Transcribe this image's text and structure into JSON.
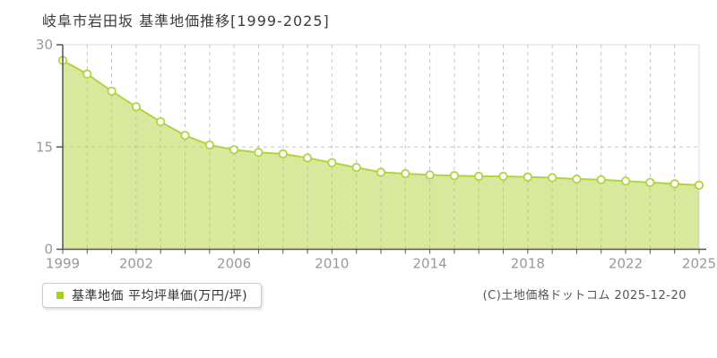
{
  "title": "岐阜市岩田坂 基準地価推移[1999-2025]",
  "legend": {
    "marker_color": "#a6d31f",
    "label": "基準地価 平均坪単価(万円/坪)"
  },
  "copyright": "(C)土地価格ドットコム 2025-12-20",
  "chart_data": {
    "type": "area",
    "title": "岐阜市岩田坂 基準地価推移[1999-2025]",
    "x": [
      1999,
      2000,
      2001,
      2002,
      2003,
      2004,
      2005,
      2006,
      2007,
      2008,
      2009,
      2010,
      2011,
      2012,
      2013,
      2014,
      2015,
      2016,
      2017,
      2018,
      2019,
      2020,
      2021,
      2022,
      2023,
      2024,
      2025
    ],
    "series": [
      {
        "name": "基準地価 平均坪単価(万円/坪)",
        "values": [
          27.7,
          25.7,
          23.2,
          20.9,
          18.7,
          16.7,
          15.3,
          14.6,
          14.2,
          14.0,
          13.4,
          12.7,
          12.0,
          11.3,
          11.1,
          10.9,
          10.8,
          10.7,
          10.7,
          10.6,
          10.5,
          10.3,
          10.2,
          10.0,
          9.8,
          9.6,
          9.4
        ]
      }
    ],
    "xlabel": "",
    "ylabel": "万円/坪",
    "ylim": [
      0,
      30
    ],
    "yticks": [
      0,
      15,
      30
    ],
    "xtick_labels": [
      1999,
      2002,
      2006,
      2010,
      2014,
      2018,
      2022,
      2025
    ],
    "grid": "dashed vertical per year, dashed horizontal at 15",
    "legend_position": "bottom-left",
    "colors": {
      "fill": "rgba(178,212,62,0.5)",
      "line": "#b2d43e",
      "marker_fill": "#ffffff",
      "grid": "#c5c5c5",
      "border": "#dddddd",
      "axis": "#555555",
      "tick_label": "#999999"
    }
  }
}
